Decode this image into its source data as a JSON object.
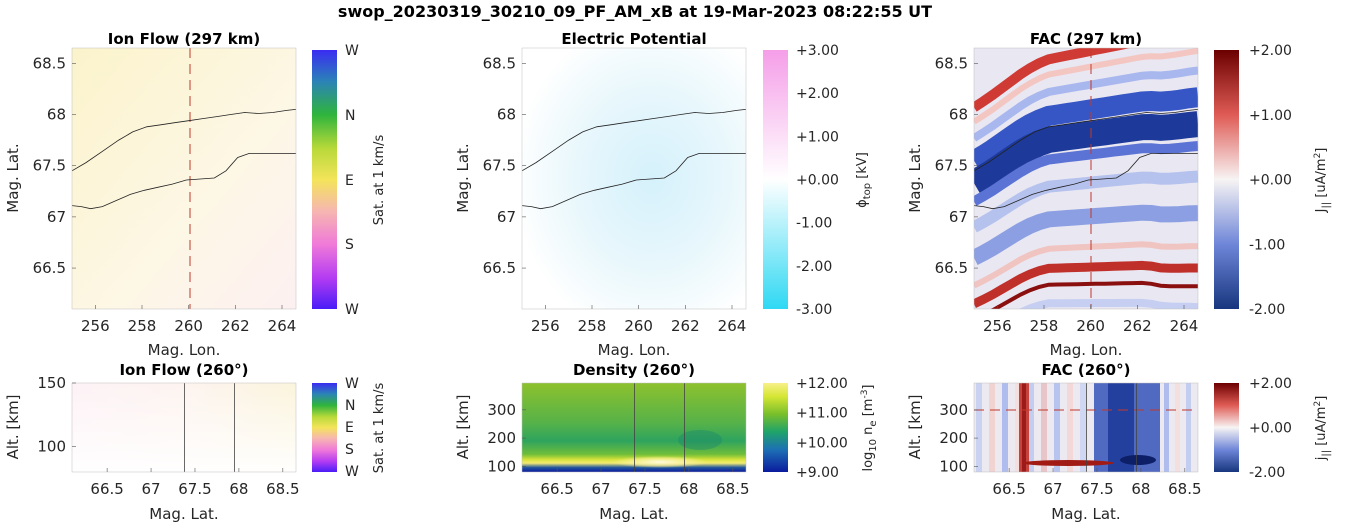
{
  "figure": {
    "suptitle": "swop_20230319_30210_09_PF_AM_xB at 19-Mar-2023 08:22:55 UT"
  },
  "chart_data": [
    {
      "id": "ion-flow-map",
      "type": "heatmap",
      "title": "Ion Flow (297 km)",
      "xlabel": "Mag. Lon.",
      "ylabel": "Mag. Lat.",
      "xlim": [
        255,
        264.6
      ],
      "ylim": [
        66.1,
        68.65
      ],
      "xticks": [
        256,
        258,
        260,
        262,
        264
      ],
      "yticks": [
        66.5,
        67,
        67.5,
        68,
        68.5
      ],
      "xtick_labels": [
        "256",
        "258",
        "260",
        "262",
        "264"
      ],
      "ytick_labels": [
        "66.5",
        "67",
        "67.5",
        "68",
        "68.5"
      ],
      "field": "pale yellow near-uniform flow, faint pink toward east",
      "colorbar": {
        "label": "Sat. at 1 km/s",
        "ticks": [
          "W",
          "N",
          "E",
          "S",
          "W"
        ],
        "colors": [
          "#3a1cf5",
          "#2f7fd0",
          "#27b05a",
          "#c9e23a",
          "#f7d85a",
          "#f39ad0",
          "#e43ef0",
          "#7a2af7"
        ]
      },
      "marker_line": {
        "x": 260,
        "style": "dashed",
        "color": "#c0392b"
      },
      "boundaries": [
        {
          "name": "",
          "x": [
            255,
            255.6,
            256.3,
            257,
            257.6,
            258.2,
            258.8,
            259.4,
            260,
            260.6,
            261.2,
            261.8,
            262.4,
            263,
            263.6,
            264.2,
            264.6
          ],
          "y": [
            67.45,
            67.53,
            67.64,
            67.75,
            67.83,
            67.88,
            67.9,
            67.92,
            67.94,
            67.96,
            67.98,
            68.0,
            68.02,
            68.01,
            68.02,
            68.04,
            68.05
          ]
        },
        {
          "name": "",
          "x": [
            255,
            255.4,
            255.8,
            256.3,
            256.9,
            257.5,
            258.1,
            258.7,
            259.3,
            259.9,
            260.5,
            261.1,
            261.6,
            262.1,
            262.6,
            263.2,
            264.6
          ],
          "y": [
            67.11,
            67.1,
            67.08,
            67.1,
            67.16,
            67.22,
            67.26,
            67.29,
            67.32,
            67.36,
            67.37,
            67.38,
            67.45,
            67.58,
            67.62,
            67.62,
            67.62
          ]
        }
      ]
    },
    {
      "id": "potential-map",
      "type": "heatmap",
      "title": "Electric Potential",
      "xlabel": "Mag. Lon.",
      "ylabel": "Mag. Lat.",
      "xlim": [
        255,
        264.6
      ],
      "ylim": [
        66.1,
        68.65
      ],
      "xticks": [
        256,
        258,
        260,
        262,
        264
      ],
      "yticks": [
        66.5,
        67,
        67.5,
        68,
        68.5
      ],
      "xtick_labels": [
        "256",
        "258",
        "260",
        "262",
        "264"
      ],
      "ytick_labels": [
        "66.5",
        "67",
        "67.5",
        "68",
        "68.5"
      ],
      "field": "weak negative potential, minimum about -0.5 kV near (260, 67.6)",
      "colorbar": {
        "label": "ϕ_top [kV]",
        "range": [
          -3,
          3
        ],
        "ticks": [
          3,
          2,
          1,
          0,
          -1,
          -2,
          -3
        ],
        "tick_labels": [
          "+3.00",
          "+2.00",
          "+1.00",
          "+0.00",
          "-1.00",
          "-2.00",
          "-3.00"
        ],
        "colors": [
          "#2fd8f3",
          "#ffffff",
          "#f59ee8"
        ]
      },
      "boundaries": "same as ion-flow-map"
    },
    {
      "id": "fac-map",
      "type": "heatmap",
      "title": "FAC (297 km)",
      "xlabel": "Mag. Lon.",
      "ylabel": "Mag. Lat.",
      "xlim": [
        255,
        264.6
      ],
      "ylim": [
        66.1,
        68.65
      ],
      "xticks": [
        256,
        258,
        260,
        262,
        264
      ],
      "yticks": [
        66.5,
        67,
        67.5,
        68,
        68.5
      ],
      "xtick_labels": [
        "256",
        "258",
        "260",
        "262",
        "264"
      ],
      "ytick_labels": [
        "66.5",
        "67",
        "67.5",
        "68",
        "68.5"
      ],
      "field": "banded currents: downward (blue) band along the boundaries, upward (red) bands near 68.6 and 66.6-67.1",
      "colorbar": {
        "label": "J_|| [uA/m^2]",
        "range": [
          -2,
          2
        ],
        "ticks": [
          2,
          1,
          0,
          -1,
          -2
        ],
        "tick_labels": [
          "+2.00",
          "+1.00",
          "+0.00",
          "-1.00",
          "-2.00"
        ],
        "colors": [
          "#1f3c98",
          "#ffffff",
          "#6b0000"
        ]
      },
      "marker_line": {
        "x": 260,
        "style": "dashed",
        "color": "#c0392b"
      },
      "boundaries": "same as ion-flow-map"
    },
    {
      "id": "ion-flow-profile",
      "type": "heatmap",
      "title": "Ion Flow (260°)",
      "xlabel": "Mag. Lat.",
      "ylabel": "Alt. [km]",
      "xlim": [
        66.1,
        68.65
      ],
      "ylim": [
        80,
        150
      ],
      "xticks": [
        66.5,
        67,
        67.5,
        68,
        68.5
      ],
      "yticks": [
        100,
        150
      ],
      "xtick_labels": [
        "66.5",
        "67",
        "67.5",
        "68",
        "68.5"
      ],
      "ytick_labels": [
        "100",
        "150"
      ],
      "colorbar": {
        "label": "Sat. at 1 km/s",
        "ticks": [
          "W",
          "N",
          "E",
          "S",
          "W"
        ]
      },
      "vertical_lines": [
        67.38,
        67.95
      ]
    },
    {
      "id": "density-profile",
      "type": "heatmap",
      "title": "Density (260°)",
      "xlabel": "Mag. Lat.",
      "ylabel": "Alt. [km]",
      "xlim": [
        66.1,
        68.65
      ],
      "ylim": [
        80,
        395
      ],
      "xticks": [
        66.5,
        67,
        67.5,
        68,
        68.5
      ],
      "yticks": [
        100,
        200,
        300
      ],
      "xtick_labels": [
        "66.5",
        "67",
        "67.5",
        "68",
        "68.5"
      ],
      "ytick_labels": [
        "100",
        "200",
        "300"
      ],
      "colorbar": {
        "label": "log10 n_e [m^-3]",
        "range": [
          9,
          12
        ],
        "ticks": [
          12,
          11,
          10,
          9
        ],
        "tick_labels": [
          "+12.00",
          "+11.00",
          "+10.00",
          "+9.00"
        ],
        "colors": [
          "#0b1b9e",
          "#1d6fb5",
          "#1fa36a",
          "#79bf2c",
          "#d6e634",
          "#f7f08a"
        ]
      },
      "vertical_lines": [
        67.38,
        67.95
      ]
    },
    {
      "id": "fac-profile",
      "type": "heatmap",
      "title": "FAC (260°)",
      "xlabel": "Mag. Lat.",
      "ylabel": "Alt. [km]",
      "xlim": [
        66.1,
        68.65
      ],
      "ylim": [
        80,
        395
      ],
      "xticks": [
        66.5,
        67,
        67.5,
        68,
        68.5
      ],
      "yticks": [
        100,
        200,
        300
      ],
      "xtick_labels": [
        "66.5",
        "67",
        "67.5",
        "68",
        "68.5"
      ],
      "ytick_labels": [
        "100",
        "200",
        "300"
      ],
      "colorbar": {
        "label": "j_|| [uA/m^2]",
        "range": [
          -2,
          2
        ],
        "ticks": [
          2,
          0,
          -2
        ],
        "tick_labels": [
          "+2.00",
          "+0.00",
          "-2.00"
        ],
        "colors": [
          "#1f3c98",
          "#ffffff",
          "#6b0000"
        ]
      },
      "marker_hline": {
        "y": 300,
        "style": "dashed",
        "color": "#c0392b"
      },
      "vertical_lines": [
        67.38,
        67.95
      ]
    }
  ]
}
